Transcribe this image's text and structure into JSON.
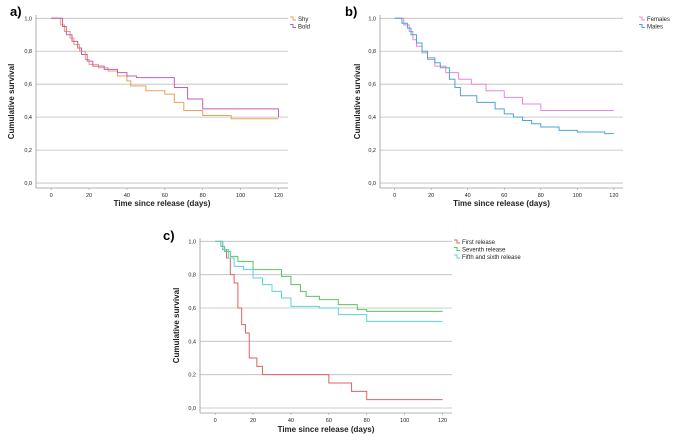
{
  "chart_data": [
    {
      "type": "line",
      "panel": "a)",
      "xlabel": "Time since release (days)",
      "ylabel": "Cumulative survival",
      "xlim": [
        -8,
        125
      ],
      "ylim": [
        -0.03,
        1.02
      ],
      "x_ticks": [
        "0",
        "20",
        "40",
        "60",
        "80",
        "100",
        "120"
      ],
      "y_ticks": [
        "0,0",
        "0,2",
        "0,4",
        "0,6",
        "0,8",
        "1,0"
      ],
      "grid": true,
      "legend_position": "top-right",
      "series": [
        {
          "name": "Shy",
          "color": "#e8a25a",
          "x": [
            0,
            5,
            7,
            10,
            12,
            15,
            18,
            20,
            25,
            30,
            35,
            40,
            42,
            50,
            60,
            65,
            70,
            80,
            95,
            120
          ],
          "y": [
            1.0,
            0.96,
            0.92,
            0.88,
            0.84,
            0.8,
            0.75,
            0.72,
            0.7,
            0.68,
            0.65,
            0.62,
            0.59,
            0.56,
            0.54,
            0.49,
            0.44,
            0.41,
            0.39,
            0.39
          ]
        },
        {
          "name": "Bold",
          "color": "#c75bbd",
          "x": [
            0,
            6,
            8,
            11,
            14,
            16,
            19,
            22,
            28,
            35,
            40,
            45,
            65,
            72,
            80,
            120
          ],
          "y": [
            1.0,
            0.95,
            0.9,
            0.86,
            0.82,
            0.78,
            0.74,
            0.71,
            0.69,
            0.67,
            0.65,
            0.64,
            0.58,
            0.51,
            0.45,
            0.4
          ]
        }
      ]
    },
    {
      "type": "line",
      "panel": "b)",
      "xlabel": "Time since release (days)",
      "ylabel": "Cumulative survival",
      "xlim": [
        -8,
        125
      ],
      "ylim": [
        -0.03,
        1.02
      ],
      "x_ticks": [
        "0",
        "20",
        "40",
        "60",
        "80",
        "100",
        "120"
      ],
      "y_ticks": [
        "0,0",
        "0,2",
        "0,4",
        "0,6",
        "0,8",
        "1,0"
      ],
      "grid": true,
      "legend_position": "top-right",
      "series": [
        {
          "name": "Females",
          "color": "#e688dc",
          "x": [
            0,
            5,
            8,
            10,
            12,
            15,
            18,
            22,
            28,
            35,
            42,
            50,
            60,
            70,
            80,
            120
          ],
          "y": [
            1.0,
            0.96,
            0.92,
            0.87,
            0.83,
            0.79,
            0.75,
            0.71,
            0.67,
            0.63,
            0.6,
            0.56,
            0.52,
            0.48,
            0.44,
            0.44
          ]
        },
        {
          "name": "Males",
          "color": "#4da3d9",
          "x": [
            0,
            4,
            7,
            9,
            12,
            15,
            18,
            22,
            25,
            30,
            33,
            36,
            45,
            55,
            60,
            65,
            70,
            75,
            80,
            90,
            100,
            115,
            120
          ],
          "y": [
            1.0,
            0.97,
            0.94,
            0.9,
            0.85,
            0.8,
            0.76,
            0.73,
            0.7,
            0.63,
            0.58,
            0.53,
            0.49,
            0.45,
            0.42,
            0.4,
            0.38,
            0.36,
            0.34,
            0.32,
            0.31,
            0.3,
            0.3
          ]
        }
      ]
    },
    {
      "type": "line",
      "panel": "c)",
      "xlabel": "Time since release (days)",
      "ylabel": "Cumulative survival",
      "xlim": [
        -8,
        125
      ],
      "ylim": [
        -0.03,
        1.02
      ],
      "x_ticks": [
        "0",
        "20",
        "40",
        "60",
        "80",
        "100",
        "120"
      ],
      "y_ticks": [
        "0,0",
        "0,2",
        "0,4",
        "0,6",
        "0,8",
        "1,0"
      ],
      "grid": true,
      "legend_position": "top-right",
      "series": [
        {
          "name": "First release",
          "color": "#e36060",
          "x": [
            0,
            4,
            6,
            8,
            10,
            12,
            14,
            16,
            18,
            22,
            25,
            45,
            60,
            72,
            80,
            120
          ],
          "y": [
            1.0,
            0.95,
            0.9,
            0.8,
            0.75,
            0.6,
            0.5,
            0.45,
            0.3,
            0.25,
            0.2,
            0.2,
            0.15,
            0.1,
            0.05,
            0.05
          ]
        },
        {
          "name": "Seventh release",
          "color": "#5cc45a",
          "x": [
            0,
            3,
            5,
            8,
            12,
            20,
            35,
            40,
            45,
            48,
            55,
            65,
            75,
            80,
            120
          ],
          "y": [
            1.0,
            0.97,
            0.94,
            0.91,
            0.88,
            0.83,
            0.79,
            0.74,
            0.7,
            0.67,
            0.65,
            0.62,
            0.59,
            0.58,
            0.58
          ]
        },
        {
          "name": "Fifth and sixth release",
          "color": "#55d4e0",
          "x": [
            0,
            4,
            7,
            10,
            15,
            20,
            25,
            30,
            35,
            40,
            55,
            65,
            80,
            120
          ],
          "y": [
            1.0,
            0.95,
            0.9,
            0.85,
            0.83,
            0.78,
            0.74,
            0.7,
            0.66,
            0.61,
            0.6,
            0.56,
            0.52,
            0.52
          ]
        }
      ]
    }
  ]
}
